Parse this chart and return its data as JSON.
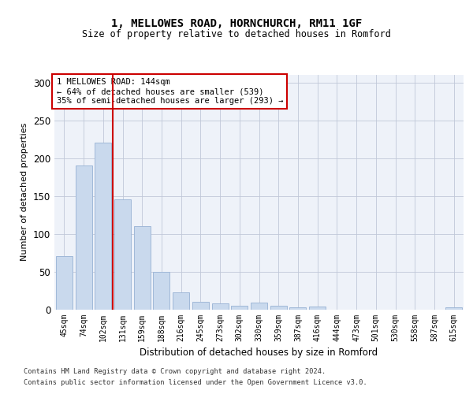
{
  "title1": "1, MELLOWES ROAD, HORNCHURCH, RM11 1GF",
  "title2": "Size of property relative to detached houses in Romford",
  "xlabel": "Distribution of detached houses by size in Romford",
  "ylabel": "Number of detached properties",
  "bar_labels": [
    "45sqm",
    "74sqm",
    "102sqm",
    "131sqm",
    "159sqm",
    "188sqm",
    "216sqm",
    "245sqm",
    "273sqm",
    "302sqm",
    "330sqm",
    "359sqm",
    "387sqm",
    "416sqm",
    "444sqm",
    "473sqm",
    "501sqm",
    "530sqm",
    "558sqm",
    "587sqm",
    "615sqm"
  ],
  "bar_values": [
    70,
    190,
    220,
    145,
    110,
    50,
    22,
    10,
    8,
    5,
    9,
    5,
    3,
    4,
    0,
    0,
    0,
    0,
    0,
    0,
    3
  ],
  "bar_color": "#c9d9ed",
  "bar_edge_color": "#a0b8d8",
  "red_line_index": 3,
  "red_line_color": "#cc0000",
  "annotation_text": "1 MELLOWES ROAD: 144sqm\n← 64% of detached houses are smaller (539)\n35% of semi-detached houses are larger (293) →",
  "annotation_box_color": "#ffffff",
  "annotation_box_edge": "#cc0000",
  "ylim": [
    0,
    310
  ],
  "yticks": [
    0,
    50,
    100,
    150,
    200,
    250,
    300
  ],
  "footer1": "Contains HM Land Registry data © Crown copyright and database right 2024.",
  "footer2": "Contains public sector information licensed under the Open Government Licence v3.0.",
  "plot_bg_color": "#eef2f9"
}
